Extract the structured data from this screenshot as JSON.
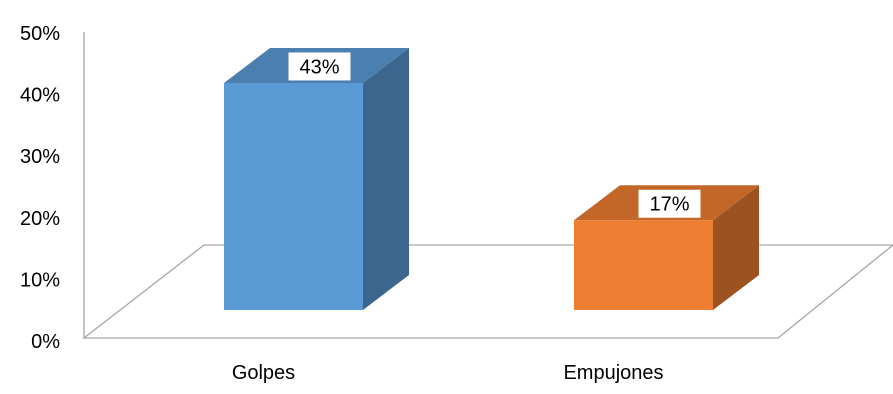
{
  "chart_data": {
    "type": "bar",
    "style": "3d-column",
    "categories": [
      "Golpes",
      "Empujones"
    ],
    "values": [
      43,
      17
    ],
    "value_labels": [
      "43%",
      "17%"
    ],
    "colors": [
      "#5B9BD5",
      "#ED7D31"
    ],
    "yticks": [
      "0%",
      "10%",
      "20%",
      "30%",
      "40%",
      "50%"
    ],
    "ylim": [
      0,
      50
    ],
    "grid": false,
    "legend": "none"
  }
}
